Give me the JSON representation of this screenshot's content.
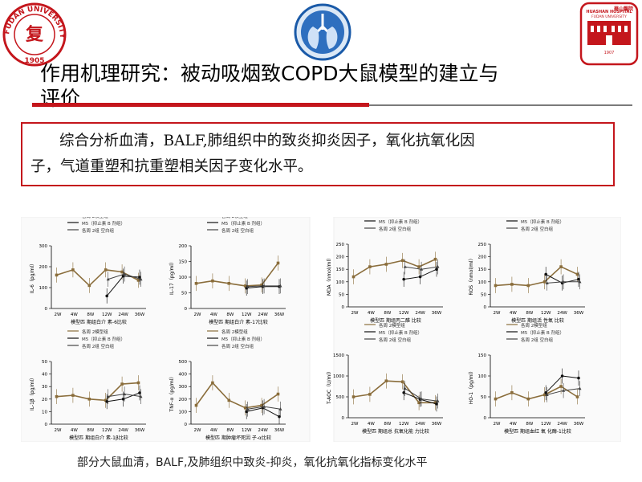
{
  "header": {
    "logo_left": {
      "text_top": "FUDAN UNIVERSITY",
      "year": "1905",
      "color": "#c4161c"
    },
    "logo_right": {
      "name_cn": "華山醫院",
      "name_en_1": "HUASHAN HOSPITAL",
      "name_en_2": "FUDAN UNIVERSITY",
      "year": "1907",
      "color": "#c4161c"
    },
    "logo_center": {
      "icon": "lungs-emblem-icon",
      "color": "#1a5aa8"
    }
  },
  "title": {
    "line1": "作用机理研究：被动吸烟致COPD大鼠模型的建立与",
    "line2": "评价"
  },
  "summary": {
    "line1": "综合分析血清，BALF,肺组织中的致炎抑炎因子，氧化抗氧化因",
    "line2": "子，气道重塑和抗重塑相关因子变化水平。"
  },
  "caption": "部分大鼠血清，BALF,及肺组织中致炎-抑炎，氧化抗氧化指标变化水平",
  "legend": [
    "各周 2模型组",
    "M5（抑止素 B 剂组）",
    "各周 2组 空白组"
  ],
  "chart_data": [
    {
      "type": "line",
      "ylabel": "IL-6（pg/ml）",
      "xlabel": "模型匹 期组白介 素-6比较",
      "categories": [
        "2W",
        "4W",
        "8W",
        "12W",
        "24W",
        "36W"
      ],
      "ylim": [
        0,
        300
      ],
      "yticks": [
        0,
        100,
        200,
        300
      ],
      "series": [
        {
          "name": "各周 2模型组",
          "values": [
            160,
            185,
            110,
            185,
            175,
            135
          ]
        },
        {
          "name": "M5（抑止素 B 剂组）",
          "values": [
            null,
            null,
            null,
            60,
            155,
            150
          ]
        },
        {
          "name": "各周 2组 空白组",
          "values": [
            null,
            null,
            null,
            140,
            165,
            140
          ]
        }
      ]
    },
    {
      "type": "line",
      "ylabel": "IL-17（pg/ml）",
      "xlabel": "模型匹 期组白介 素-17比较",
      "categories": [
        "2W",
        "4W",
        "8W",
        "12W",
        "24W",
        "36W"
      ],
      "ylim": [
        0,
        200
      ],
      "yticks": [
        0,
        50,
        100,
        150,
        200
      ],
      "series": [
        {
          "name": "各周 2模型组",
          "values": [
            80,
            88,
            80,
            72,
            75,
            145
          ]
        },
        {
          "name": "M5（抑止素 B 剂组）",
          "values": [
            null,
            null,
            null,
            65,
            70,
            70
          ]
        },
        {
          "name": "各周 2组 空白组",
          "values": [
            null,
            null,
            null,
            70,
            72,
            72
          ]
        }
      ]
    },
    {
      "type": "line",
      "ylabel": "MDA（nmol/ml）",
      "xlabel": "模型匹 期组丙二醛 比较",
      "categories": [
        "2W",
        "4W",
        "8W",
        "12W",
        "24W",
        "36W"
      ],
      "ylim": [
        0,
        250
      ],
      "yticks": [
        0,
        50,
        100,
        150,
        200,
        250
      ],
      "series": [
        {
          "name": "各周 2模型组",
          "values": [
            120,
            160,
            170,
            185,
            160,
            190
          ]
        },
        {
          "name": "M5（抑止素 B 剂组）",
          "values": [
            null,
            null,
            null,
            110,
            120,
            150
          ]
        },
        {
          "name": "各周 2组 空白组",
          "values": [
            null,
            null,
            null,
            160,
            150,
            160
          ]
        }
      ]
    },
    {
      "type": "line",
      "ylabel": "ROS（nmol/ml）",
      "xlabel": "模型匹 期组活 性氧 比较",
      "categories": [
        "2W",
        "4W",
        "8W",
        "12W",
        "24W",
        "36W"
      ],
      "ylim": [
        0,
        250
      ],
      "yticks": [
        0,
        50,
        100,
        150,
        200,
        250
      ],
      "series": [
        {
          "name": "各周 2模型组",
          "values": [
            85,
            90,
            85,
            100,
            160,
            130
          ]
        },
        {
          "name": "M5（抑止素 B 剂组）",
          "values": [
            null,
            null,
            null,
            130,
            95,
            110
          ]
        },
        {
          "name": "各周 2组 空白组",
          "values": [
            null,
            null,
            null,
            95,
            100,
            100
          ]
        }
      ]
    },
    {
      "type": "line",
      "ylabel": "IL-1β（pg/ml）",
      "xlabel": "模型匹 期组白介 素-1β比较",
      "categories": [
        "2W",
        "4W",
        "8W",
        "12W",
        "24W",
        "36W"
      ],
      "ylim": [
        0,
        50
      ],
      "yticks": [
        0,
        10,
        20,
        30,
        40,
        50
      ],
      "series": [
        {
          "name": "各周 2模型组",
          "values": [
            22,
            23,
            20,
            19,
            32,
            33
          ]
        },
        {
          "name": "M5（抑止素 B 剂组）",
          "values": [
            null,
            null,
            null,
            18,
            20,
            25
          ]
        },
        {
          "name": "各周 2组 空白组",
          "values": [
            null,
            null,
            null,
            22,
            24,
            22
          ]
        }
      ]
    },
    {
      "type": "line",
      "ylabel": "TNF-α（pg/ml）",
      "xlabel": "模型匹 期肿瘤坏死因 子-α比较",
      "categories": [
        "2W",
        "4W",
        "8W",
        "12W",
        "24W",
        "36W"
      ],
      "ylim": [
        0,
        500
      ],
      "yticks": [
        0,
        100,
        200,
        300,
        400,
        500
      ],
      "series": [
        {
          "name": "各周 2模型组",
          "values": [
            150,
            330,
            190,
            130,
            150,
            240
          ]
        },
        {
          "name": "M5（抑止素 B 剂组）",
          "values": [
            null,
            null,
            null,
            100,
            130,
            60
          ]
        },
        {
          "name": "各周 2组 空白组",
          "values": [
            null,
            null,
            null,
            120,
            140,
            120
          ]
        }
      ]
    },
    {
      "type": "line",
      "ylabel": "T-AOC（U/ml）",
      "xlabel": "模型匹 期组总 抗氧化能 力比较",
      "categories": [
        "2W",
        "4W",
        "8W",
        "12W",
        "24W",
        "36W"
      ],
      "ylim": [
        0,
        1500
      ],
      "yticks": [
        0,
        500,
        1000,
        1500
      ],
      "series": [
        {
          "name": "各周 2模型组",
          "values": [
            500,
            560,
            880,
            860,
            360,
            360
          ]
        },
        {
          "name": "M5（抑止素 B 剂组）",
          "values": [
            null,
            null,
            null,
            600,
            440,
            330
          ]
        },
        {
          "name": "各周 2组 空白组",
          "values": [
            null,
            null,
            null,
            700,
            450,
            400
          ]
        }
      ]
    },
    {
      "type": "line",
      "ylabel": "HO-1（pg/ml）",
      "xlabel": "模型匹 期组血红 氧 化酶-1比较",
      "categories": [
        "2W",
        "4W",
        "8W",
        "12W",
        "24W",
        "36W"
      ],
      "ylim": [
        0,
        150
      ],
      "yticks": [
        0,
        50,
        100,
        150
      ],
      "series": [
        {
          "name": "各周 2模型组",
          "values": [
            45,
            60,
            45,
            55,
            75,
            50
          ]
        },
        {
          "name": "M5（抑止素 B 剂组）",
          "values": [
            null,
            null,
            null,
            60,
            100,
            95
          ]
        },
        {
          "name": "各周 2组 空白组",
          "values": [
            null,
            null,
            null,
            55,
            65,
            70
          ]
        }
      ]
    }
  ]
}
